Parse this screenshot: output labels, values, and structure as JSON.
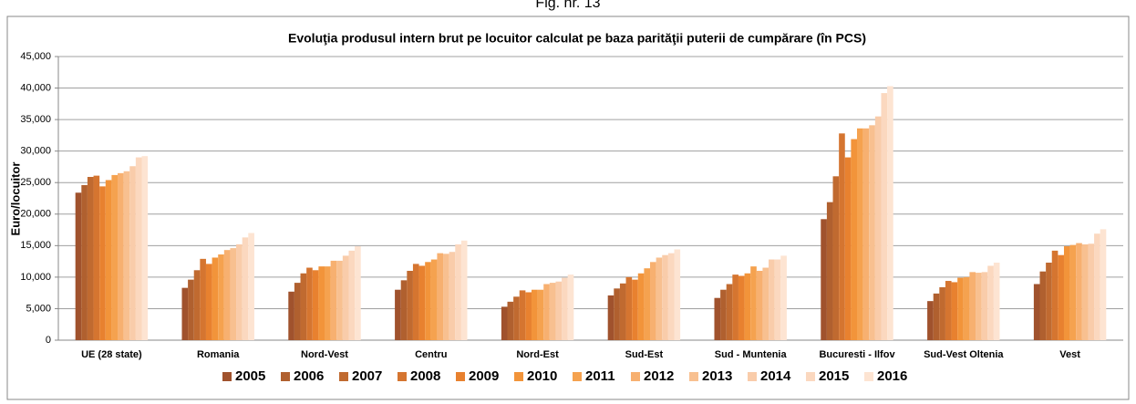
{
  "caption": "Fig. nr. 13",
  "chart_data": {
    "type": "bar",
    "title": "Evoluţia produsul intern brut pe locuitor calculat pe baza parităţii puterii de cumpărare (în PCS)",
    "ylabel": "Euro/locuitor",
    "categories": [
      "UE (28 state)",
      "Romania",
      "Nord-Vest",
      "Centru",
      "Nord-Est",
      "Sud-Est",
      "Sud - Muntenia",
      "Bucuresti - Ilfov",
      "Sud-Vest Oltenia",
      "Vest"
    ],
    "series": [
      {
        "name": "2005",
        "color": "#a0522d",
        "values": [
          23400,
          8300,
          7700,
          8000,
          5300,
          7100,
          6700,
          19200,
          6200,
          8900
        ]
      },
      {
        "name": "2006",
        "color": "#b0602f",
        "values": [
          24600,
          9600,
          9100,
          9500,
          6100,
          8200,
          8000,
          21900,
          7400,
          10900
        ]
      },
      {
        "name": "2007",
        "color": "#c06a30",
        "values": [
          25900,
          11100,
          10600,
          11000,
          6900,
          9000,
          8900,
          26000,
          8400,
          12300
        ]
      },
      {
        "name": "2008",
        "color": "#d57530",
        "values": [
          26100,
          12900,
          11500,
          12100,
          7900,
          10000,
          10400,
          32800,
          9400,
          14200
        ]
      },
      {
        "name": "2009",
        "color": "#e8812f",
        "values": [
          24400,
          12100,
          11100,
          11800,
          7600,
          9600,
          10200,
          29000,
          9200,
          13500
        ]
      },
      {
        "name": "2010",
        "color": "#f2943a",
        "values": [
          25400,
          13100,
          11700,
          12400,
          8000,
          10600,
          10600,
          31900,
          9900,
          14900
        ]
      },
      {
        "name": "2011",
        "color": "#f5a24f",
        "values": [
          26200,
          13600,
          11700,
          12800,
          8000,
          11400,
          11700,
          33600,
          10000,
          15100
        ]
      },
      {
        "name": "2012",
        "color": "#f7b070",
        "values": [
          26500,
          14300,
          12600,
          13800,
          8900,
          12400,
          11000,
          33600,
          10800,
          15400
        ]
      },
      {
        "name": "2013",
        "color": "#f8c090",
        "values": [
          26800,
          14600,
          12600,
          13700,
          9100,
          13100,
          11500,
          34100,
          10700,
          15200
        ]
      },
      {
        "name": "2014",
        "color": "#f9ccaa",
        "values": [
          27600,
          15200,
          13400,
          14000,
          9300,
          13500,
          12800,
          35500,
          10800,
          15300
        ]
      },
      {
        "name": "2015",
        "color": "#fbd8bf",
        "values": [
          29000,
          16300,
          14200,
          15200,
          9900,
          13800,
          12800,
          39200,
          11800,
          16900
        ]
      },
      {
        "name": "2016",
        "color": "#fde4d2",
        "values": [
          29200,
          17000,
          14900,
          15800,
          10400,
          14400,
          13400,
          40300,
          12300,
          17600
        ]
      }
    ],
    "ylim": [
      0,
      45000
    ],
    "yticks": [
      0,
      {
        "value": 5000,
        "label": "5,000"
      },
      {
        "value": 10000,
        "label": "10,000"
      },
      {
        "value": 15000,
        "label": "15,000"
      },
      {
        "value": 20000,
        "label": "20,000"
      },
      {
        "value": 25000,
        "label": "25,000"
      },
      {
        "value": 30000,
        "label": "30,000"
      },
      {
        "value": 35000,
        "label": "35,000"
      },
      {
        "value": 40000,
        "label": "40,000"
      },
      {
        "value": 45000,
        "label": "45,000"
      }
    ],
    "grid": true,
    "legend": "bottom"
  }
}
